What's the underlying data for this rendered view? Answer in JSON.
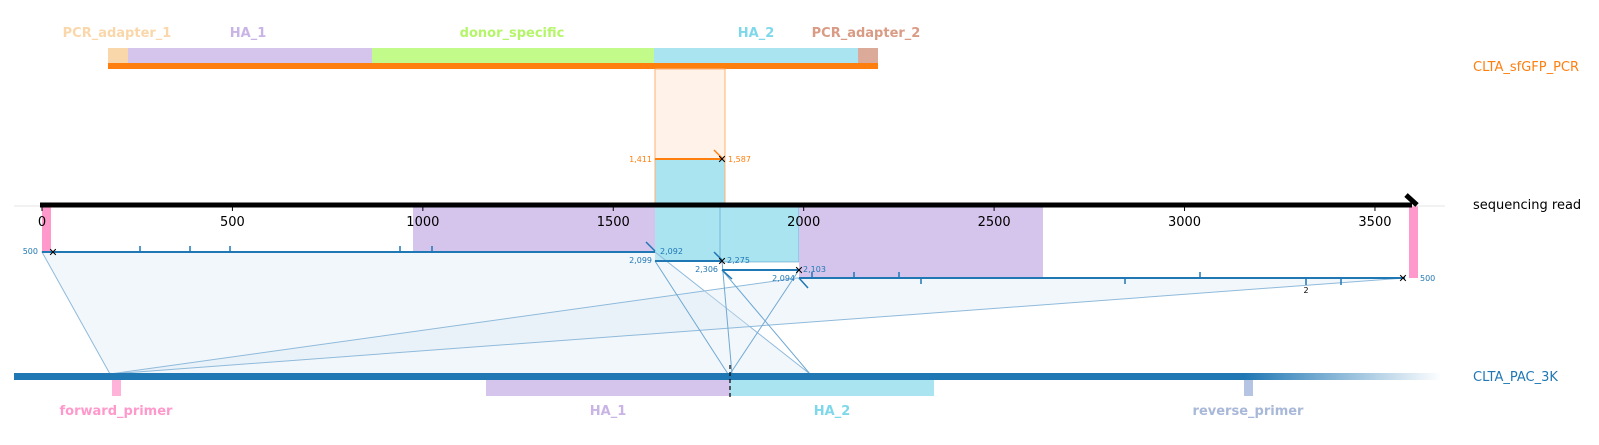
{
  "top_reference": {
    "name": "CLTA_sfGFP_PCR",
    "color": "#ff7f0e",
    "features": [
      {
        "label": "PCR_adapter_1",
        "color": "#fad7aa"
      },
      {
        "label": "HA_1",
        "color": "#c9b4e6"
      },
      {
        "label": "donor_specific",
        "color": "#c3fb8a"
      },
      {
        "label": "HA_2",
        "color": "#99e0ef"
      },
      {
        "label": "PCR_adapter_2",
        "color": "#d99b84"
      }
    ],
    "alignment_start_label": "1,411",
    "alignment_end_label": "1,587"
  },
  "read": {
    "name": "sequencing read",
    "axis_ticks": [
      "0",
      "500",
      "1000",
      "1500",
      "2000",
      "2500",
      "3000",
      "3500"
    ],
    "axis_max": 3550
  },
  "read_alignments": [
    {
      "left_label": "500",
      "right_label": "2,092"
    },
    {
      "left_label": "2,099",
      "right_label": "2,275"
    },
    {
      "left_label": "2,306",
      "right_label": "2,103"
    },
    {
      "left_label": "2,094",
      "right_label": "500"
    }
  ],
  "read_annotation": "2",
  "bottom_reference": {
    "name": "CLTA_PAC_3K",
    "color": "#1f77b4",
    "features": [
      {
        "label": "forward_primer",
        "color": "#ff99cc"
      },
      {
        "label": "HA_1",
        "color": "#c9b4e6"
      },
      {
        "label": "HA_2",
        "color": "#99e0ef"
      },
      {
        "label": "reverse_primer",
        "color": "#a8b8d8"
      }
    ]
  }
}
